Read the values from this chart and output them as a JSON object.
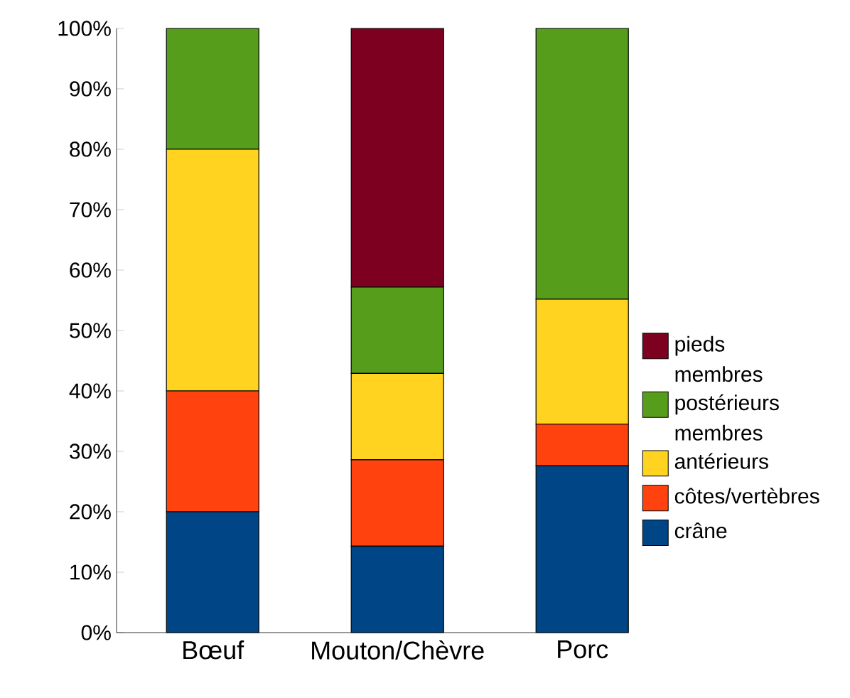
{
  "chart_data": {
    "type": "bar",
    "stacked": true,
    "categories": [
      "Bœuf",
      "Mouton/Chèvre",
      "Porc"
    ],
    "series": [
      {
        "name": "crâne",
        "color": "#004586",
        "values": [
          20,
          14.3,
          27.6
        ]
      },
      {
        "name": "côtes/vertèbres",
        "color": "#ff420e",
        "values": [
          20,
          14.3,
          6.9
        ]
      },
      {
        "name": "membres antérieurs",
        "color": "#ffd320",
        "values": [
          40,
          14.3,
          20.7
        ]
      },
      {
        "name": "membres postérieurs",
        "color": "#579d1c",
        "values": [
          20,
          14.3,
          44.8
        ]
      },
      {
        "name": "pieds",
        "color": "#7e0021",
        "values": [
          0,
          42.8,
          0
        ]
      }
    ],
    "ylim": [
      0,
      100
    ],
    "yticks": [
      {
        "value": 0,
        "label": "0%"
      },
      {
        "value": 10,
        "label": "10%"
      },
      {
        "value": 20,
        "label": "20%"
      },
      {
        "value": 30,
        "label": "30%"
      },
      {
        "value": 40,
        "label": "40%"
      },
      {
        "value": 50,
        "label": "50%"
      },
      {
        "value": 60,
        "label": "60%"
      },
      {
        "value": 70,
        "label": "70%"
      },
      {
        "value": 80,
        "label": "80%"
      },
      {
        "value": 90,
        "label": "90%"
      },
      {
        "value": 100,
        "label": "100%"
      }
    ],
    "legend": "right"
  }
}
